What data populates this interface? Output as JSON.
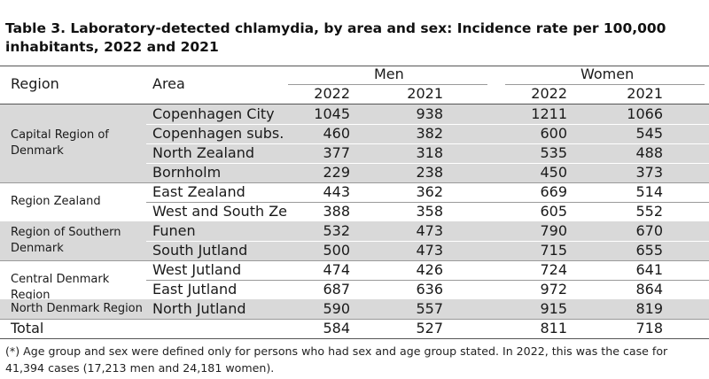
{
  "title": "Table 3. Laboratory-detected chlamydia, by area and sex: Incidence rate per 100,000 inhabitants, 2022 and 2021",
  "headers": {
    "region": "Region",
    "area": "Area",
    "men": "Men",
    "women": "Women",
    "year1": "2022",
    "year2": "2021"
  },
  "regions": [
    {
      "name": "Capital Region of Denmark",
      "rows": [
        {
          "area": "Copenhagen City",
          "men2022": "1045",
          "men2021": "938",
          "women2022": "1211",
          "women2021": "1066"
        },
        {
          "area": "Copenhagen subs.",
          "men2022": "460",
          "men2021": "382",
          "women2022": "600",
          "women2021": "545"
        },
        {
          "area": "North Zealand",
          "men2022": "377",
          "men2021": "318",
          "women2022": "535",
          "women2021": "488"
        },
        {
          "area": "Bornholm",
          "men2022": "229",
          "men2021": "238",
          "women2022": "450",
          "women2021": "373"
        }
      ]
    },
    {
      "name": "Region Zealand",
      "rows": [
        {
          "area": "East Zealand",
          "men2022": "443",
          "men2021": "362",
          "women2022": "669",
          "women2021": "514"
        },
        {
          "area": "West and South Zealanc",
          "men2022": "388",
          "men2021": "358",
          "women2022": "605",
          "women2021": "552"
        }
      ]
    },
    {
      "name": "Region of Southern Denmark",
      "rows": [
        {
          "area": "Funen",
          "men2022": "532",
          "men2021": "473",
          "women2022": "790",
          "women2021": "670"
        },
        {
          "area": "South Jutland",
          "men2022": "500",
          "men2021": "473",
          "women2022": "715",
          "women2021": "655"
        }
      ]
    },
    {
      "name": "Central Denmark Region",
      "rows": [
        {
          "area": "West Jutland",
          "men2022": "474",
          "men2021": "426",
          "women2022": "724",
          "women2021": "641"
        },
        {
          "area": "East Jutland",
          "men2022": "687",
          "men2021": "636",
          "women2022": "972",
          "women2021": "864"
        }
      ]
    },
    {
      "name": "North Denmark Region",
      "rows": [
        {
          "area": "North Jutland",
          "men2022": "590",
          "men2021": "557",
          "women2022": "915",
          "women2021": "819"
        }
      ]
    }
  ],
  "total": {
    "label": "Total",
    "men2022": "584",
    "men2021": "527",
    "women2022": "811",
    "women2021": "718"
  },
  "footnote": "(*) Age group and sex were defined only for persons who had sex and age group stated. In 2022, this was the case for 41,394 cases (17,213 men and 24,181 women)."
}
